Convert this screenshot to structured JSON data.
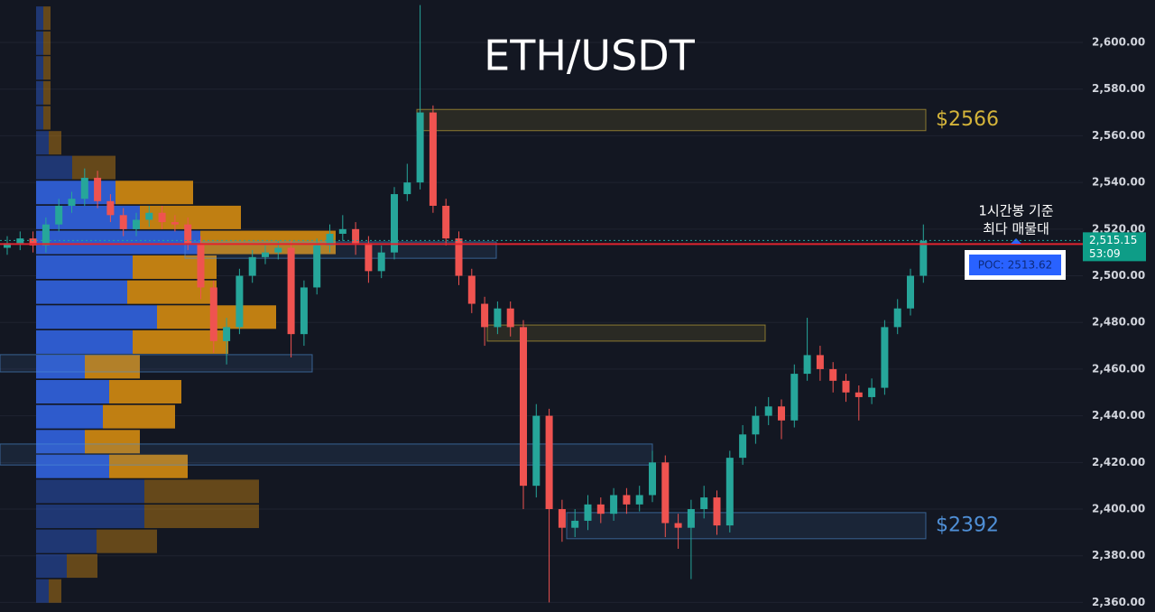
{
  "chart_data": {
    "type": "candlestick",
    "title": "ETH/USDT",
    "ylim": [
      2355.9,
      2618.2
    ],
    "yticks": [
      {
        "value": 2360,
        "label": "2,360.00"
      },
      {
        "value": 2380,
        "label": "2,380.00"
      },
      {
        "value": 2400,
        "label": "2,400.00"
      },
      {
        "value": 2420,
        "label": "2,420.00"
      },
      {
        "value": 2440,
        "label": "2,440.00"
      },
      {
        "value": 2460,
        "label": "2,460.00"
      },
      {
        "value": 2480,
        "label": "2,480.00"
      },
      {
        "value": 2500,
        "label": "2,500.00"
      },
      {
        "value": 2520,
        "label": "2,520.00"
      },
      {
        "value": 2540,
        "label": "2,540.00"
      },
      {
        "value": 2560,
        "label": "2,560.00"
      },
      {
        "value": 2580,
        "label": "2,580.00"
      },
      {
        "value": 2600,
        "label": "2,600.00"
      }
    ],
    "grid": true,
    "up_color": "#26a69a",
    "down_color": "#ef5350",
    "open": [
      2512,
      2514,
      2516,
      2513,
      2522,
      2530,
      2533,
      2542,
      2532,
      2526,
      2520,
      2524,
      2527,
      2523,
      2522,
      2514,
      2495,
      2472,
      2478,
      2500,
      2508,
      2510,
      2512,
      2475,
      2495,
      2513,
      2518,
      2520,
      2514,
      2502,
      2510,
      2535,
      2540,
      2570,
      2530,
      2516,
      2500,
      2488,
      2478,
      2486,
      2478,
      2410,
      2440,
      2400,
      2392,
      2395,
      2402,
      2398,
      2406,
      2402,
      2406,
      2420,
      2394,
      2392,
      2400,
      2405,
      2393,
      2422,
      2432,
      2440,
      2444,
      2438,
      2458,
      2466,
      2460,
      2455,
      2450,
      2448,
      2452,
      2478,
      2486,
      2500
    ],
    "high": [
      2517,
      2519,
      2519,
      2525,
      2533,
      2536,
      2546,
      2545,
      2535,
      2529,
      2527,
      2530,
      2530,
      2526,
      2525,
      2517,
      2498,
      2482,
      2503,
      2511,
      2513,
      2515,
      2515,
      2498,
      2516,
      2522,
      2526,
      2523,
      2517,
      2513,
      2538,
      2548,
      2616,
      2573,
      2533,
      2519,
      2503,
      2491,
      2489,
      2489,
      2481,
      2445,
      2443,
      2404,
      2400,
      2406,
      2405,
      2409,
      2409,
      2410,
      2425,
      2423,
      2398,
      2404,
      2410,
      2408,
      2425,
      2436,
      2444,
      2448,
      2447,
      2462,
      2482,
      2470,
      2463,
      2458,
      2453,
      2456,
      2481,
      2490,
      2503,
      2522
    ],
    "low": [
      2509,
      2511,
      2510,
      2510,
      2519,
      2527,
      2530,
      2529,
      2523,
      2517,
      2517,
      2521,
      2520,
      2519,
      2511,
      2490,
      2467,
      2462,
      2475,
      2497,
      2505,
      2507,
      2465,
      2470,
      2492,
      2510,
      2515,
      2509,
      2497,
      2499,
      2507,
      2532,
      2537,
      2527,
      2513,
      2496,
      2484,
      2470,
      2475,
      2474,
      2400,
      2405,
      2360,
      2386,
      2388,
      2391,
      2394,
      2395,
      2398,
      2399,
      2403,
      2388,
      2383,
      2370,
      2396,
      2389,
      2390,
      2419,
      2428,
      2436,
      2430,
      2435,
      2455,
      2455,
      2450,
      2446,
      2438,
      2445,
      2449,
      2475,
      2483,
      2497
    ],
    "close": [
      2514,
      2516,
      2513,
      2522,
      2530,
      2533,
      2542,
      2532,
      2526,
      2520,
      2524,
      2527,
      2523,
      2522,
      2514,
      2495,
      2472,
      2478,
      2500,
      2508,
      2510,
      2512,
      2475,
      2495,
      2513,
      2518,
      2520,
      2514,
      2502,
      2510,
      2535,
      2540,
      2570,
      2530,
      2516,
      2500,
      2488,
      2478,
      2486,
      2478,
      2410,
      2440,
      2400,
      2392,
      2395,
      2402,
      2398,
      2406,
      2402,
      2406,
      2420,
      2394,
      2392,
      2400,
      2405,
      2393,
      2422,
      2432,
      2440,
      2444,
      2438,
      2458,
      2466,
      2460,
      2455,
      2450,
      2448,
      2452,
      2478,
      2486,
      2500,
      2515
    ],
    "volume_profile": {
      "buy_color": "#2f5fd6",
      "sell_color": "#c98512",
      "prices": [
        2610.4,
        2599.7,
        2589.1,
        2578.4,
        2567.7,
        2557.0,
        2546.4,
        2535.7,
        2525.0,
        2514.3,
        2503.7,
        2493.0,
        2482.3,
        2471.6,
        2461.0,
        2450.3,
        2439.6,
        2428.9,
        2418.3,
        2407.6,
        2396.9,
        2386.2,
        2375.6,
        2364.9
      ],
      "buy": [
        8,
        8,
        8,
        8,
        8,
        14,
        40,
        88,
        115,
        182,
        107,
        101,
        134,
        107,
        54,
        81,
        74,
        54,
        81,
        120,
        120,
        67,
        34,
        14
      ],
      "sell": [
        8,
        8,
        8,
        8,
        8,
        14,
        48,
        86,
        112,
        150,
        93,
        99,
        132,
        106,
        61,
        80,
        80,
        61,
        87,
        127,
        127,
        67,
        34,
        14
      ]
    },
    "zones": [
      {
        "top": 2571.3,
        "bottom": 2562.2,
        "color": "#d4b43a",
        "label": "$2566"
      },
      {
        "top": 2478.9,
        "bottom": 2472.0,
        "color": "#d4b43a"
      },
      {
        "top": 2398.5,
        "bottom": 2387.3,
        "color": "#4f8fd6",
        "label": "$2392"
      },
      {
        "top": 2466.2,
        "bottom": 2458.8,
        "color": "#4f8fd6"
      },
      {
        "top": 2427.9,
        "bottom": 2418.9,
        "color": "#4f8fd6"
      },
      {
        "top": 2514.5,
        "bottom": 2507.5,
        "color": "#4f8fd6"
      }
    ],
    "poc": {
      "value": 2513.62,
      "label": "POC: 2513.62",
      "color": "#e0242f"
    },
    "last_price": {
      "value": 2515.15,
      "label": "2,515.15",
      "countdown": "53:09"
    },
    "annotation": [
      "1시간봉 기준",
      "최다 매물대"
    ]
  }
}
